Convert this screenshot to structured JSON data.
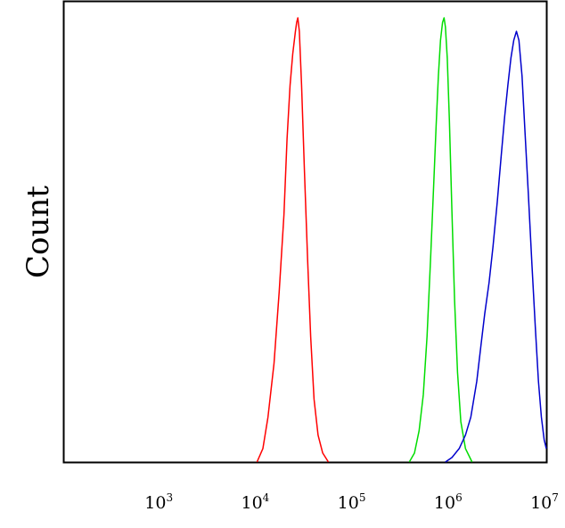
{
  "chart_data": {
    "type": "line",
    "title": "",
    "xlabel": "",
    "ylabel": "Count",
    "x_scale": "log",
    "xlim": [
      100,
      10000000
    ],
    "ylim": [
      0,
      100
    ],
    "grid": false,
    "legend": "none",
    "x_ticks": [
      {
        "value": 1000,
        "base": "10",
        "exp": "3"
      },
      {
        "value": 10000,
        "base": "10",
        "exp": "4"
      },
      {
        "value": 100000,
        "base": "10",
        "exp": "5"
      },
      {
        "value": 1000000,
        "base": "10",
        "exp": "6"
      },
      {
        "value": 10000000,
        "base": "10",
        "exp": "7"
      }
    ],
    "series": [
      {
        "color": "#ff0000",
        "points": [
          [
            10000,
            0
          ],
          [
            11500,
            3
          ],
          [
            13000,
            10
          ],
          [
            15000,
            22
          ],
          [
            17000,
            38
          ],
          [
            19000,
            55
          ],
          [
            20500,
            72
          ],
          [
            22000,
            84
          ],
          [
            23500,
            91
          ],
          [
            25000,
            96
          ],
          [
            25800,
            98
          ],
          [
            26500,
            99
          ],
          [
            27500,
            96
          ],
          [
            29000,
            84
          ],
          [
            31000,
            65
          ],
          [
            33500,
            45
          ],
          [
            36000,
            28
          ],
          [
            39000,
            14
          ],
          [
            43000,
            6
          ],
          [
            48000,
            2
          ],
          [
            55000,
            0
          ]
        ]
      },
      {
        "color": "#00dd00",
        "points": [
          [
            380000,
            0
          ],
          [
            430000,
            2
          ],
          [
            480000,
            7
          ],
          [
            530000,
            15
          ],
          [
            580000,
            28
          ],
          [
            630000,
            45
          ],
          [
            680000,
            62
          ],
          [
            720000,
            75
          ],
          [
            760000,
            86
          ],
          [
            800000,
            94
          ],
          [
            840000,
            98
          ],
          [
            870000,
            99
          ],
          [
            900000,
            97
          ],
          [
            940000,
            90
          ],
          [
            990000,
            76
          ],
          [
            1050000,
            56
          ],
          [
            1120000,
            36
          ],
          [
            1200000,
            20
          ],
          [
            1300000,
            9
          ],
          [
            1450000,
            3
          ],
          [
            1700000,
            0
          ]
        ]
      },
      {
        "color": "#0000cc",
        "points": [
          [
            900000,
            0
          ],
          [
            1050000,
            1
          ],
          [
            1250000,
            3
          ],
          [
            1450000,
            6
          ],
          [
            1650000,
            10
          ],
          [
            1900000,
            18
          ],
          [
            2100000,
            26
          ],
          [
            2300000,
            33
          ],
          [
            2550000,
            40
          ],
          [
            2800000,
            48
          ],
          [
            3100000,
            58
          ],
          [
            3400000,
            68
          ],
          [
            3700000,
            77
          ],
          [
            4000000,
            84
          ],
          [
            4300000,
            90
          ],
          [
            4600000,
            94
          ],
          [
            4900000,
            96
          ],
          [
            5200000,
            94
          ],
          [
            5600000,
            86
          ],
          [
            6000000,
            74
          ],
          [
            6500000,
            60
          ],
          [
            7100000,
            44
          ],
          [
            7700000,
            30
          ],
          [
            8300000,
            18
          ],
          [
            8900000,
            10
          ],
          [
            9500000,
            5
          ],
          [
            10000000,
            3
          ]
        ]
      }
    ]
  }
}
